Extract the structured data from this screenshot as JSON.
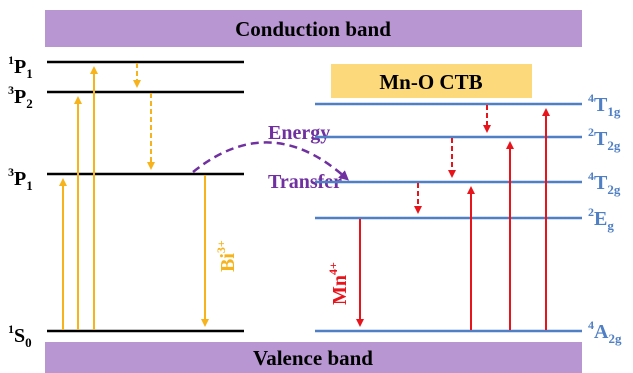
{
  "bands": {
    "conduction": "Conduction band",
    "valence": "Valence band",
    "ctb": "Mn-O CTB",
    "band_color": "#b896d2",
    "ctb_color": "#fcd97a"
  },
  "bi_levels": {
    "p1_1": {
      "main": "P",
      "sup": "1",
      "sub": "1"
    },
    "p2_3": {
      "main": "P",
      "sup": "3",
      "sub": "2"
    },
    "p1_3": {
      "main": "P",
      "sup": "3",
      "sub": "1"
    },
    "s0_1": {
      "main": "S",
      "sup": "1",
      "sub": "0"
    }
  },
  "mn_levels": {
    "t1g_4": {
      "sup": "4",
      "main": "T",
      "sub": "1g"
    },
    "t2g_2": {
      "sup": "2",
      "main": "T",
      "sub": "2g"
    },
    "t2g_4": {
      "sup": "4",
      "main": "T",
      "sub": "2g"
    },
    "eg_2": {
      "sup": "2",
      "main": "E",
      "sub": "g"
    },
    "a2g_4": {
      "sup": "4",
      "main": "A",
      "sub": "2g"
    }
  },
  "labels": {
    "energy": "Energy",
    "transfer": "Transfer",
    "bi_ion": {
      "main": "Bi",
      "sup": "3+"
    },
    "mn_ion": {
      "main": "Mn",
      "sup": "4+"
    }
  },
  "colors": {
    "bi_arrow": "#f6b31b",
    "mn_arrow": "#e8141c",
    "mn_level": "#4f7fc4",
    "energy_transfer": "#7030a0"
  }
}
